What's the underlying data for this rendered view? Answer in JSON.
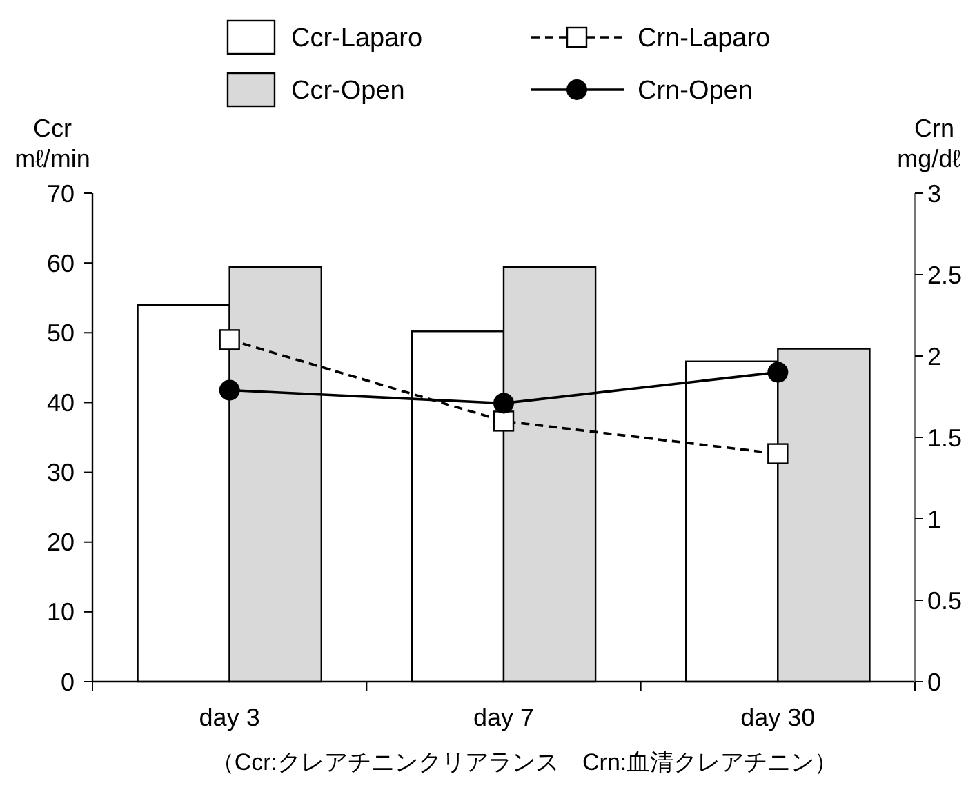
{
  "chart_data": {
    "type": "bar",
    "categories": [
      "day 3",
      "day 7",
      "day 30"
    ],
    "ylabel": "Ccr\nmℓ/min",
    "y2label": "Crn\nmg/dℓ",
    "ylim": [
      0,
      70
    ],
    "yticks": [
      0,
      10,
      20,
      30,
      40,
      50,
      60,
      70
    ],
    "y2lim": [
      0,
      3
    ],
    "y2ticks": [
      0,
      0.5,
      1,
      1.5,
      2,
      2.5,
      3
    ],
    "series": [
      {
        "name": "Ccr-Laparo",
        "color": "#ffffff",
        "values": [
          54,
          50.2,
          45.9
        ]
      },
      {
        "name": "Ccr-Open",
        "color": "#d9d9d9",
        "values": [
          59.4,
          59.4,
          47.7
        ]
      },
      {
        "name": "Crn-Laparo",
        "type": "line",
        "axis": "y2",
        "color": "#000000",
        "marker": "square",
        "line_style": "dashed",
        "values": [
          2.1,
          1.6,
          1.4
        ]
      },
      {
        "name": "Crn-Open",
        "type": "line",
        "axis": "y2",
        "color": "#000000",
        "marker": "circle",
        "line_style": "solid",
        "values": [
          1.79,
          1.71,
          1.9
        ]
      }
    ],
    "legend": "top",
    "grid": false,
    "annotations": [
      "（Ccr:クレアチニンクリアランス　Crn:血清クレアチニン）"
    ]
  }
}
